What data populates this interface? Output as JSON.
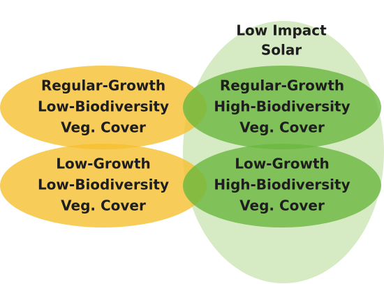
{
  "solar": {
    "lines": [
      "Low Impact",
      "Solar"
    ]
  },
  "nodes": [
    {
      "lines": [
        "Regular-Growth",
        "Low-Biodiversity",
        "Veg. Cover"
      ]
    },
    {
      "lines": [
        "Low-Growth",
        "Low-Biodiversity",
        "Veg. Cover"
      ]
    },
    {
      "lines": [
        "Regular-Growth",
        "High-Biodiversity",
        "Veg. Cover"
      ]
    },
    {
      "lines": [
        "Low-Growth",
        "High-Biodiversity",
        "Veg. Cover"
      ]
    }
  ]
}
